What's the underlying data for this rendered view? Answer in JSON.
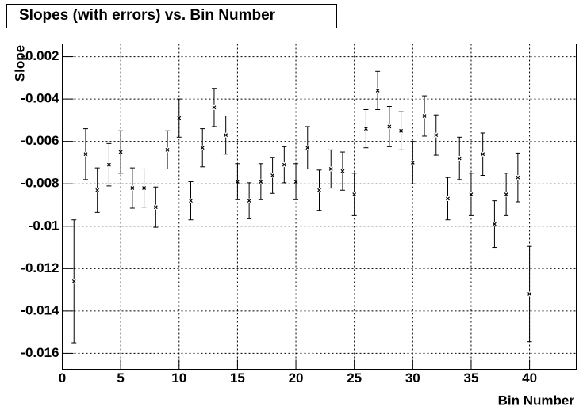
{
  "chart_data": {
    "type": "errorbar",
    "title": "Slopes (with errors) vs. Bin Number",
    "xlabel": "Bin Number",
    "ylabel": "Slope",
    "x": [
      1,
      2,
      3,
      4,
      5,
      6,
      7,
      8,
      9,
      10,
      11,
      12,
      13,
      14,
      15,
      16,
      17,
      18,
      19,
      20,
      21,
      22,
      23,
      24,
      25,
      26,
      27,
      28,
      29,
      30,
      31,
      32,
      33,
      34,
      35,
      36,
      37,
      38,
      39,
      40
    ],
    "values": [
      -0.0126,
      -0.0066,
      -0.0083,
      -0.0071,
      -0.0065,
      -0.0082,
      -0.0082,
      -0.0091,
      -0.0064,
      -0.0049,
      -0.0088,
      -0.0063,
      -0.0044,
      -0.0057,
      -0.0079,
      -0.0088,
      -0.0079,
      -0.0076,
      -0.0071,
      -0.0079,
      -0.0063,
      -0.0083,
      -0.0073,
      -0.0074,
      -0.0085,
      -0.0054,
      -0.0036,
      -0.0053,
      -0.0055,
      -0.007,
      -0.0048,
      -0.0057,
      -0.0087,
      -0.0068,
      -0.0085,
      -0.0066,
      -0.0099,
      -0.0085,
      -0.0077,
      -0.0132
    ],
    "errors": [
      0.0029,
      0.0012,
      0.00105,
      0.001,
      0.001,
      0.00095,
      0.0009,
      0.00095,
      0.0009,
      0.0009,
      0.0009,
      0.0009,
      0.0009,
      0.0009,
      0.00085,
      0.00085,
      0.00085,
      0.00085,
      0.00085,
      0.00085,
      0.001,
      0.00095,
      0.0009,
      0.0009,
      0.001,
      0.0009,
      0.0009,
      0.00095,
      0.0009,
      0.001,
      0.00095,
      0.00095,
      0.001,
      0.001,
      0.001,
      0.001,
      0.0011,
      0.001,
      0.00115,
      0.00225
    ],
    "color": "#000000",
    "xlim": [
      0,
      44
    ],
    "ylim": [
      -0.01675,
      -0.0014
    ],
    "xticks": [
      0,
      5,
      10,
      15,
      20,
      25,
      30,
      35,
      40
    ],
    "yticks": [
      -0.002,
      -0.004,
      -0.006,
      -0.008,
      -0.01,
      -0.012,
      -0.014,
      -0.016
    ],
    "grid": true
  }
}
